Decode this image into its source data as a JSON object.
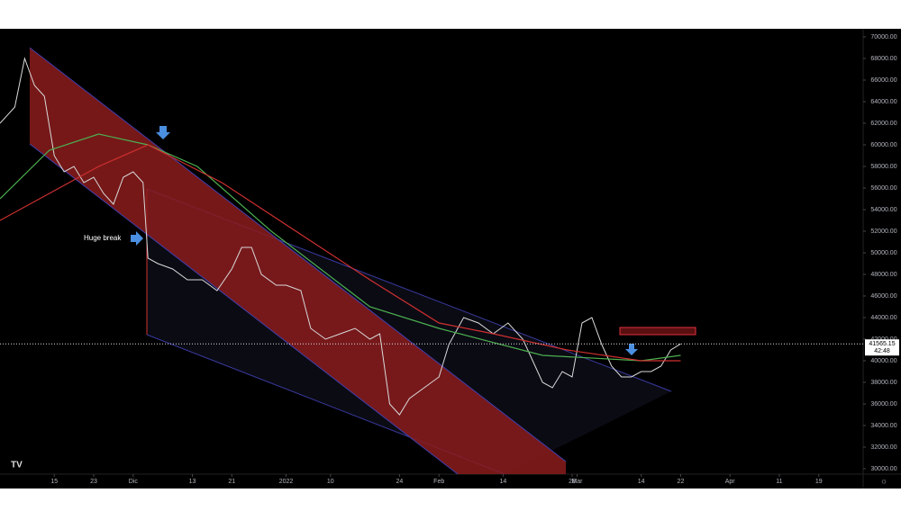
{
  "chart_data": {
    "type": "line",
    "annotations": [
      "Huge break"
    ],
    "last_price": 41565.15,
    "countdown": "42:48",
    "xlim": [
      0,
      175
    ],
    "xticks": [
      {
        "value": 11,
        "label": "15"
      },
      {
        "value": 19,
        "label": "23"
      },
      {
        "value": 27,
        "label": "Dic"
      },
      {
        "value": 39,
        "label": "13"
      },
      {
        "value": 47,
        "label": "21"
      },
      {
        "value": 58,
        "label": "2022"
      },
      {
        "value": 67,
        "label": "10"
      },
      {
        "value": 81,
        "label": "24"
      },
      {
        "value": 89,
        "label": "Feb"
      },
      {
        "value": 102,
        "label": "14"
      },
      {
        "value": 116,
        "label": "28"
      },
      {
        "value": 117,
        "label": "Mar"
      },
      {
        "value": 130,
        "label": "14"
      },
      {
        "value": 138,
        "label": "22"
      },
      {
        "value": 148,
        "label": "Apr"
      },
      {
        "value": 158,
        "label": "11"
      },
      {
        "value": 166,
        "label": "19"
      }
    ],
    "ylim": [
      30000,
      70000
    ],
    "yticks": [
      {
        "value": 30000,
        "label": "30000.00"
      },
      {
        "value": 32000,
        "label": "32000.00"
      },
      {
        "value": 34000,
        "label": "34000.00"
      },
      {
        "value": 36000,
        "label": "36000.00"
      },
      {
        "value": 38000,
        "label": "38000.00"
      },
      {
        "value": 40000,
        "label": "40000.00"
      },
      {
        "value": 42000,
        "label": "42000.00"
      },
      {
        "value": 44000,
        "label": "44000.00"
      },
      {
        "value": 46000,
        "label": "46000.00"
      },
      {
        "value": 48000,
        "label": "48000.00"
      },
      {
        "value": 50000,
        "label": "50000.00"
      },
      {
        "value": 52000,
        "label": "52000.00"
      },
      {
        "value": 54000,
        "label": "54000.00"
      },
      {
        "value": 56000,
        "label": "56000.00"
      },
      {
        "value": 58000,
        "label": "58000.00"
      },
      {
        "value": 60000,
        "label": "60000.00"
      },
      {
        "value": 62000,
        "label": "62000.00"
      },
      {
        "value": 64000,
        "label": "64000.00"
      },
      {
        "value": 66000,
        "label": "66000.00"
      },
      {
        "value": 68000,
        "label": "68000.00"
      },
      {
        "value": 70000,
        "label": "70000.00"
      }
    ],
    "series": [
      {
        "color": "#d9d9d9",
        "x": [
          0,
          3,
          5,
          7,
          9,
          11,
          13,
          15,
          17,
          19,
          21,
          23,
          25,
          27,
          29,
          30,
          32,
          35,
          38,
          41,
          44,
          47,
          49,
          51,
          53,
          56,
          58,
          61,
          63,
          66,
          69,
          72,
          75,
          77,
          79,
          81,
          83,
          86,
          89,
          91,
          94,
          97,
          100,
          103,
          106,
          108,
          110,
          112,
          114,
          116,
          118,
          120,
          122,
          124,
          126,
          128,
          130,
          132,
          134,
          136,
          138
        ],
        "values": [
          62000,
          63500,
          68000,
          65500,
          64500,
          59000,
          57500,
          58000,
          56500,
          57000,
          55500,
          54500,
          57000,
          57500,
          56500,
          49500,
          49000,
          48500,
          47500,
          47500,
          46500,
          48500,
          50500,
          50500,
          48000,
          47000,
          47000,
          46500,
          43000,
          42000,
          42500,
          43000,
          42000,
          42500,
          36000,
          35000,
          36500,
          37500,
          38500,
          41500,
          44000,
          43500,
          42500,
          43500,
          42000,
          40000,
          38000,
          37500,
          39000,
          38500,
          43500,
          44000,
          41500,
          39500,
          38500,
          38500,
          39000,
          39000,
          39500,
          41000,
          41565
        ]
      },
      {
        "color": "#4caf50",
        "x": [
          0,
          10,
          20,
          30,
          40,
          55,
          75,
          89,
          110,
          130,
          138
        ],
        "values": [
          55000,
          59500,
          61000,
          60000,
          58000,
          52000,
          45000,
          43000,
          40500,
          40000,
          40500
        ]
      },
      {
        "color": "#d03030",
        "x": [
          0,
          20,
          30,
          45,
          60,
          75,
          89,
          100,
          115,
          130,
          138
        ],
        "values": [
          53000,
          58000,
          60000,
          56500,
          52000,
          47500,
          43500,
          42500,
          41000,
          40000,
          40000
        ]
      }
    ]
  }
}
